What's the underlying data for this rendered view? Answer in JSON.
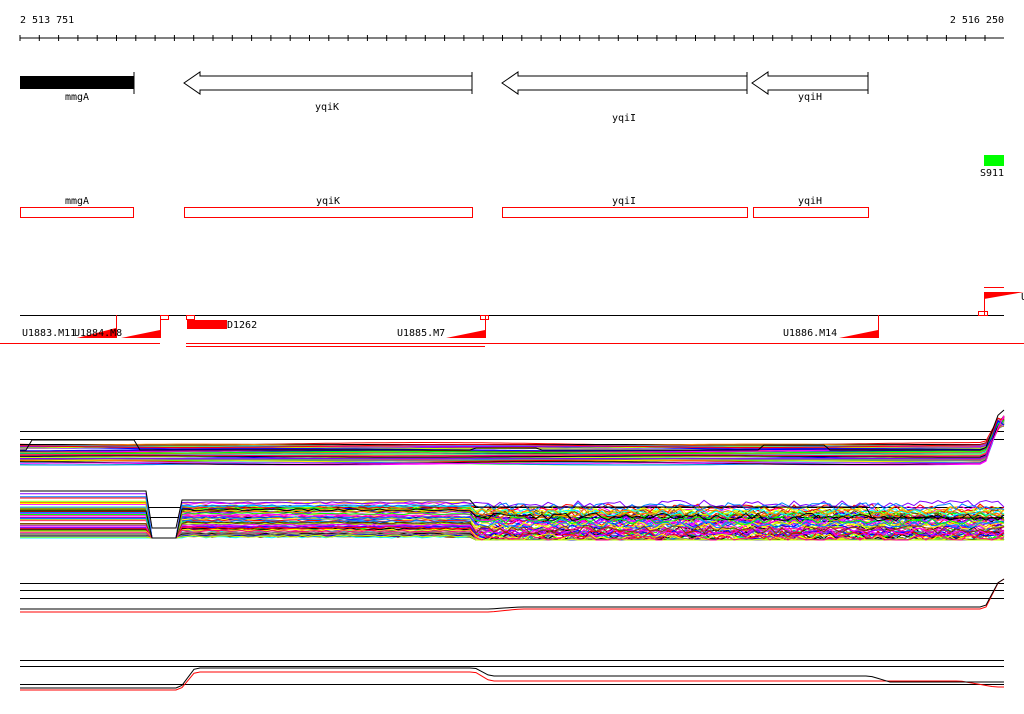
{
  "ruler": {
    "start_label": "2 513 751",
    "end_label": "2 516 250"
  },
  "genes": [
    {
      "name": "mmgA",
      "strand": "+",
      "style": "filled"
    },
    {
      "name": "yqiK",
      "strand": "-",
      "style": "arrow"
    },
    {
      "name": "yqiI",
      "strand": "-",
      "style": "arrow"
    },
    {
      "name": "yqiH",
      "strand": "-",
      "style": "arrow"
    }
  ],
  "feature": {
    "name": "S911",
    "color": "#00ff00"
  },
  "annotations": [
    "mmgA",
    "yqiK",
    "yqiI",
    "yqiH"
  ],
  "transcripts": {
    "labels": [
      "U1883.M11",
      "U1884.M8",
      "U1885.M7",
      "U1886.M14",
      "D1262",
      "U"
    ]
  },
  "colors": {
    "accent": "#ff0000",
    "feature": "#00ff00",
    "trace_palette": [
      "#ff0000",
      "#00ff00",
      "#0000ff",
      "#ff00ff",
      "#00ffff",
      "#ffff00",
      "#ff8000",
      "#808080",
      "#8000ff",
      "#0080ff",
      "#804000",
      "#c0ff00",
      "#ff0080",
      "#000000"
    ]
  }
}
